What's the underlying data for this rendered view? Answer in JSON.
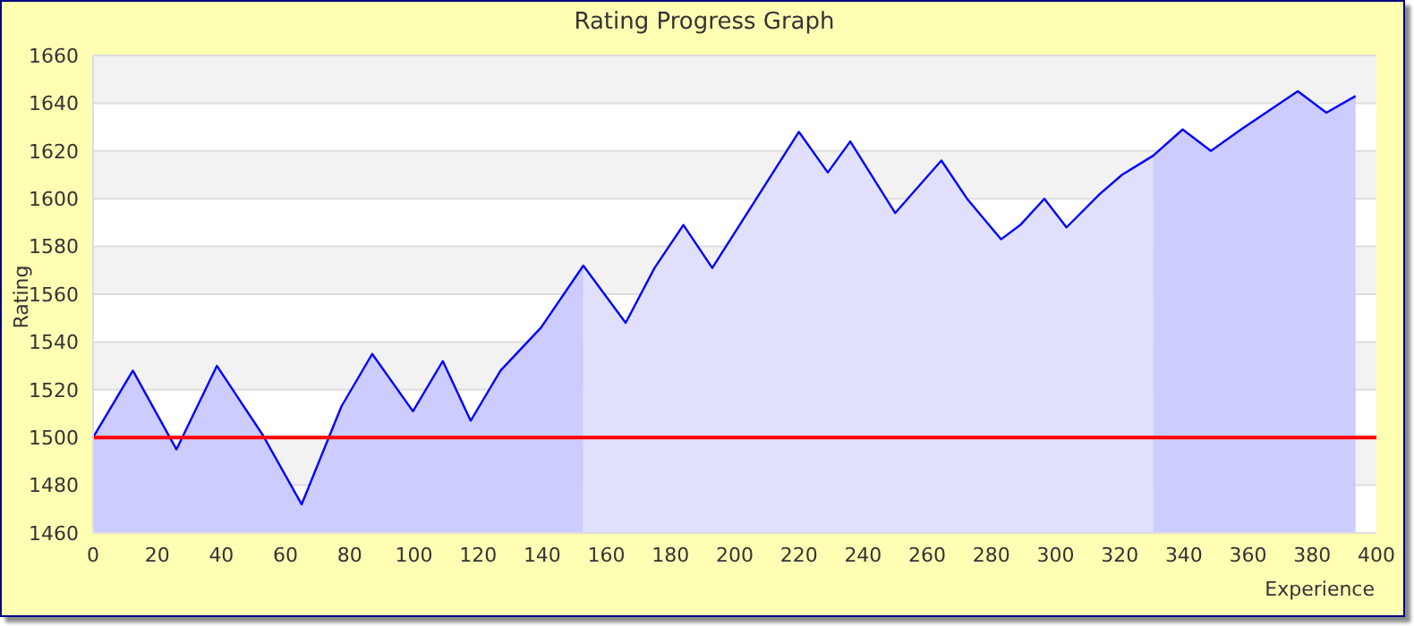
{
  "chart_data": {
    "type": "line",
    "title": "Rating Progress Graph",
    "xlabel": "Experience",
    "ylabel": "Rating",
    "xlim": [
      0,
      400
    ],
    "xticks": [
      0,
      20,
      40,
      60,
      80,
      100,
      120,
      140,
      160,
      180,
      200,
      220,
      240,
      260,
      280,
      300,
      320,
      340,
      360,
      380,
      400
    ],
    "ylim": [
      1460,
      1660
    ],
    "yticks": [
      1460,
      1480,
      1500,
      1520,
      1540,
      1560,
      1580,
      1600,
      1620,
      1640,
      1660
    ],
    "grid": "y",
    "legend": false,
    "marker": "none",
    "line_style": "solid",
    "ref_lines": [
      {
        "axis": "y",
        "value": 1500,
        "color": "#ff0000"
      }
    ],
    "series": [
      {
        "type": "area",
        "color": "#ccccff",
        "x": [
          0,
          12.4,
          26,
          38.6,
          52.9,
          65,
          77.4,
          87,
          99.7,
          109,
          117.7,
          127,
          139.6,
          152.8
        ],
        "values": [
          1500,
          1528,
          1495,
          1530,
          1501,
          1472,
          1513,
          1535,
          1511,
          1532,
          1507,
          1528,
          1546,
          1572
        ]
      },
      {
        "type": "area",
        "color": "#e0e0fc",
        "x": [
          152.8,
          166,
          175,
          184,
          193,
          220,
          229,
          236,
          250,
          264.4,
          272.4,
          283,
          289,
          296.5,
          303.4,
          313.8,
          320.7,
          330.4
        ],
        "values": [
          1572,
          1548,
          1571,
          1589,
          1571,
          1628,
          1611,
          1624,
          1594,
          1616,
          1600,
          1583,
          1589,
          1600,
          1588,
          1602,
          1610,
          1618
        ]
      },
      {
        "type": "area",
        "color": "#ccccff",
        "x": [
          330.4,
          339.6,
          348.4,
          357.8,
          366.6,
          375.5,
          384.4,
          393.5
        ],
        "values": [
          1618,
          1629,
          1620,
          1629,
          1637,
          1645,
          1636,
          1643
        ]
      },
      {
        "color": "#0000ff",
        "x": [
          0,
          12.4,
          26,
          38.6,
          52.9,
          65,
          77.4,
          87,
          99.7,
          109,
          117.7,
          127,
          139.6,
          152.8,
          166,
          175,
          184,
          193,
          220,
          229,
          236,
          250,
          264.4,
          272.4,
          283,
          289,
          296.5,
          303.4,
          313.8,
          320.7,
          330.4,
          339.6,
          348.4,
          357.8,
          366.6,
          375.5,
          384.4,
          393.5
        ],
        "values": [
          1500,
          1528,
          1495,
          1530,
          1501,
          1472,
          1513,
          1535,
          1511,
          1532,
          1507,
          1528,
          1546,
          1572,
          1548,
          1571,
          1589,
          1571,
          1628,
          1611,
          1624,
          1594,
          1616,
          1600,
          1583,
          1589,
          1600,
          1588,
          1602,
          1610,
          1618,
          1629,
          1620,
          1629,
          1637,
          1645,
          1636,
          1643
        ]
      }
    ]
  }
}
